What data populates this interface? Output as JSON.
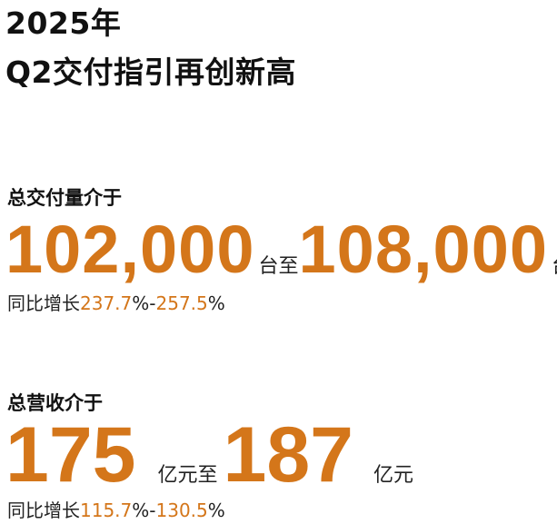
{
  "header": {
    "line1": "2025年",
    "line2": "Q2交付指引再创新高"
  },
  "deliveries": {
    "label": "总交付量介于",
    "low": "102,000",
    "unit_mid": "台至",
    "high": "108,000",
    "unit_end": "台",
    "growth_prefix": "同比增长",
    "growth_low": "237.7",
    "pct1": "%-",
    "growth_high": "257.5",
    "pct2": "%"
  },
  "revenue": {
    "label": "总营收介于",
    "low": "175",
    "unit_mid": "亿元至",
    "high": "187",
    "unit_end": "亿元",
    "growth_prefix": "同比增长",
    "growth_low": "115.7",
    "pct1": "%-",
    "growth_high": "130.5",
    "pct2": "%"
  },
  "colors": {
    "accent": "#D4761A",
    "text": "#111111"
  }
}
